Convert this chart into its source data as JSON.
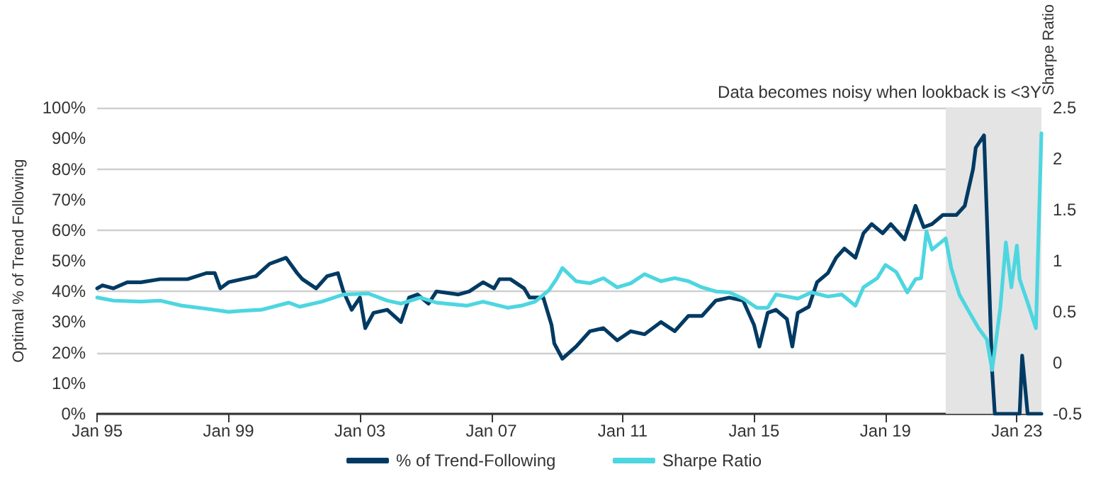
{
  "chart_data": {
    "type": "line",
    "ylabel": "Optimal % of Trend Following",
    "y2label": "Sharpe Ratio",
    "xlim": [
      "1995-01",
      "2023-10"
    ],
    "xticks": [
      {
        "value": "1995-01",
        "label": "Jan 95"
      },
      {
        "value": "1999-01",
        "label": "Jan 99"
      },
      {
        "value": "2003-01",
        "label": "Jan 03"
      },
      {
        "value": "2007-01",
        "label": "Jan 07"
      },
      {
        "value": "2011-01",
        "label": "Jan 11"
      },
      {
        "value": "2015-01",
        "label": "Jan 15"
      },
      {
        "value": "2019-01",
        "label": "Jan 19"
      },
      {
        "value": "2023-01",
        "label": "Jan 23"
      }
    ],
    "ylim": [
      0,
      100
    ],
    "yticks": [
      {
        "value": 0,
        "label": "0%"
      },
      {
        "value": 10,
        "label": "10%"
      },
      {
        "value": 20,
        "label": "20%"
      },
      {
        "value": 30,
        "label": "30%"
      },
      {
        "value": 40,
        "label": "40%"
      },
      {
        "value": 50,
        "label": "50%"
      },
      {
        "value": 60,
        "label": "60%"
      },
      {
        "value": 70,
        "label": "70%"
      },
      {
        "value": 80,
        "label": "80%"
      },
      {
        "value": 90,
        "label": "90%"
      },
      {
        "value": 100,
        "label": "100%"
      }
    ],
    "y2lim": [
      -0.5,
      2.5
    ],
    "y2ticks": [
      -0.5,
      0,
      0.5,
      1,
      1.5,
      2,
      2.5
    ],
    "grid": "y",
    "legend": "bottom",
    "marker": "none",
    "line_style": "solid",
    "bands": [
      {
        "axis": "x",
        "from": "2020-11",
        "to": "2023-10",
        "label": "Data becomes noisy when lookback is <3Y",
        "color": "#e4e4e4"
      }
    ],
    "series": [
      {
        "name": "% of Trend-Following",
        "color": "#003a63",
        "x": [
          "1995-01",
          "1995-03",
          "1995-07",
          "1995-12",
          "1996-05",
          "1996-12",
          "1997-05",
          "1997-10",
          "1998-05",
          "1998-08",
          "1998-10",
          "1999-01",
          "1999-06",
          "1999-11",
          "2000-04",
          "2000-10",
          "2001-02",
          "2001-04",
          "2001-09",
          "2002-01",
          "2002-05",
          "2002-07",
          "2002-10",
          "2003-01",
          "2003-03",
          "2003-06",
          "2003-11",
          "2004-04",
          "2004-07",
          "2004-10",
          "2005-02",
          "2005-05",
          "2006-01",
          "2006-05",
          "2006-10",
          "2007-02",
          "2007-04",
          "2007-08",
          "2008-01",
          "2008-03",
          "2008-08",
          "2008-11",
          "2008-12",
          "2009-03",
          "2009-08",
          "2010-01",
          "2010-06",
          "2010-11",
          "2011-04",
          "2011-09",
          "2012-03",
          "2012-08",
          "2013-01",
          "2013-06",
          "2013-11",
          "2014-04",
          "2014-09",
          "2015-01",
          "2015-03",
          "2015-06",
          "2015-09",
          "2016-01",
          "2016-03",
          "2016-05",
          "2016-09",
          "2016-12",
          "2017-04",
          "2017-07",
          "2017-10",
          "2018-02",
          "2018-05",
          "2018-08",
          "2018-12",
          "2019-03",
          "2019-08",
          "2019-12",
          "2020-03",
          "2020-06",
          "2020-10",
          "2021-03",
          "2021-06",
          "2021-09",
          "2021-10",
          "2022-01",
          "2022-02",
          "2022-04",
          "2022-05",
          "2023-02",
          "2023-03",
          "2023-05",
          "2023-10"
        ],
        "values": [
          41,
          42,
          41,
          43,
          43,
          44,
          44,
          44,
          46,
          46,
          41,
          43,
          44,
          45,
          49,
          51,
          46,
          44,
          41,
          45,
          46,
          40,
          34,
          38,
          28,
          33,
          34,
          30,
          38,
          39,
          36,
          40,
          39,
          40,
          43,
          41,
          44,
          44,
          41,
          38,
          38,
          29,
          23,
          18,
          22,
          27,
          28,
          24,
          27,
          26,
          30,
          27,
          32,
          32,
          37,
          38,
          37,
          29,
          22,
          33,
          34,
          31,
          22,
          33,
          35,
          43,
          46,
          51,
          54,
          51,
          59,
          62,
          59,
          62,
          57,
          68,
          61,
          62,
          65,
          65,
          68,
          80,
          87,
          91,
          65,
          14,
          0,
          0,
          19,
          0,
          0
        ]
      },
      {
        "name": "Sharpe Ratio",
        "color": "#4dd6e0",
        "axis": "y2",
        "x": [
          "1995-01",
          "1995-07",
          "1996-05",
          "1996-12",
          "1997-08",
          "1998-05",
          "1999-01",
          "1999-06",
          "2000-01",
          "2000-11",
          "2001-03",
          "2001-11",
          "2002-07",
          "2003-04",
          "2003-11",
          "2004-04",
          "2004-11",
          "2005-05",
          "2006-04",
          "2006-10",
          "2007-07",
          "2007-12",
          "2008-05",
          "2008-10",
          "2009-01",
          "2009-03",
          "2009-08",
          "2010-01",
          "2010-06",
          "2010-11",
          "2011-04",
          "2011-09",
          "2012-03",
          "2012-08",
          "2013-01",
          "2013-06",
          "2013-11",
          "2014-04",
          "2014-09",
          "2015-02",
          "2015-06",
          "2015-09",
          "2016-01",
          "2016-05",
          "2016-10",
          "2017-04",
          "2017-09",
          "2018-02",
          "2018-05",
          "2018-10",
          "2019-01",
          "2019-05",
          "2019-09",
          "2019-12",
          "2020-02",
          "2020-04",
          "2020-06",
          "2020-11",
          "2021-01",
          "2021-04",
          "2021-08",
          "2021-11",
          "2022-02",
          "2022-04",
          "2022-07",
          "2022-09",
          "2022-11",
          "2023-01",
          "2023-02",
          "2023-05",
          "2023-08",
          "2023-10"
        ],
        "values": [
          0.64,
          0.61,
          0.6,
          0.61,
          0.56,
          0.53,
          0.5,
          0.51,
          0.52,
          0.59,
          0.55,
          0.6,
          0.67,
          0.68,
          0.61,
          0.58,
          0.64,
          0.59,
          0.56,
          0.6,
          0.54,
          0.56,
          0.6,
          0.71,
          0.83,
          0.93,
          0.8,
          0.78,
          0.83,
          0.74,
          0.78,
          0.87,
          0.8,
          0.83,
          0.8,
          0.74,
          0.7,
          0.69,
          0.63,
          0.54,
          0.54,
          0.67,
          0.65,
          0.63,
          0.69,
          0.65,
          0.67,
          0.56,
          0.74,
          0.83,
          0.96,
          0.89,
          0.69,
          0.82,
          0.83,
          1.29,
          1.11,
          1.22,
          0.93,
          0.67,
          0.48,
          0.34,
          0.23,
          -0.07,
          0.54,
          1.18,
          0.74,
          1.15,
          0.82,
          0.59,
          0.34,
          2.25
        ]
      }
    ]
  }
}
